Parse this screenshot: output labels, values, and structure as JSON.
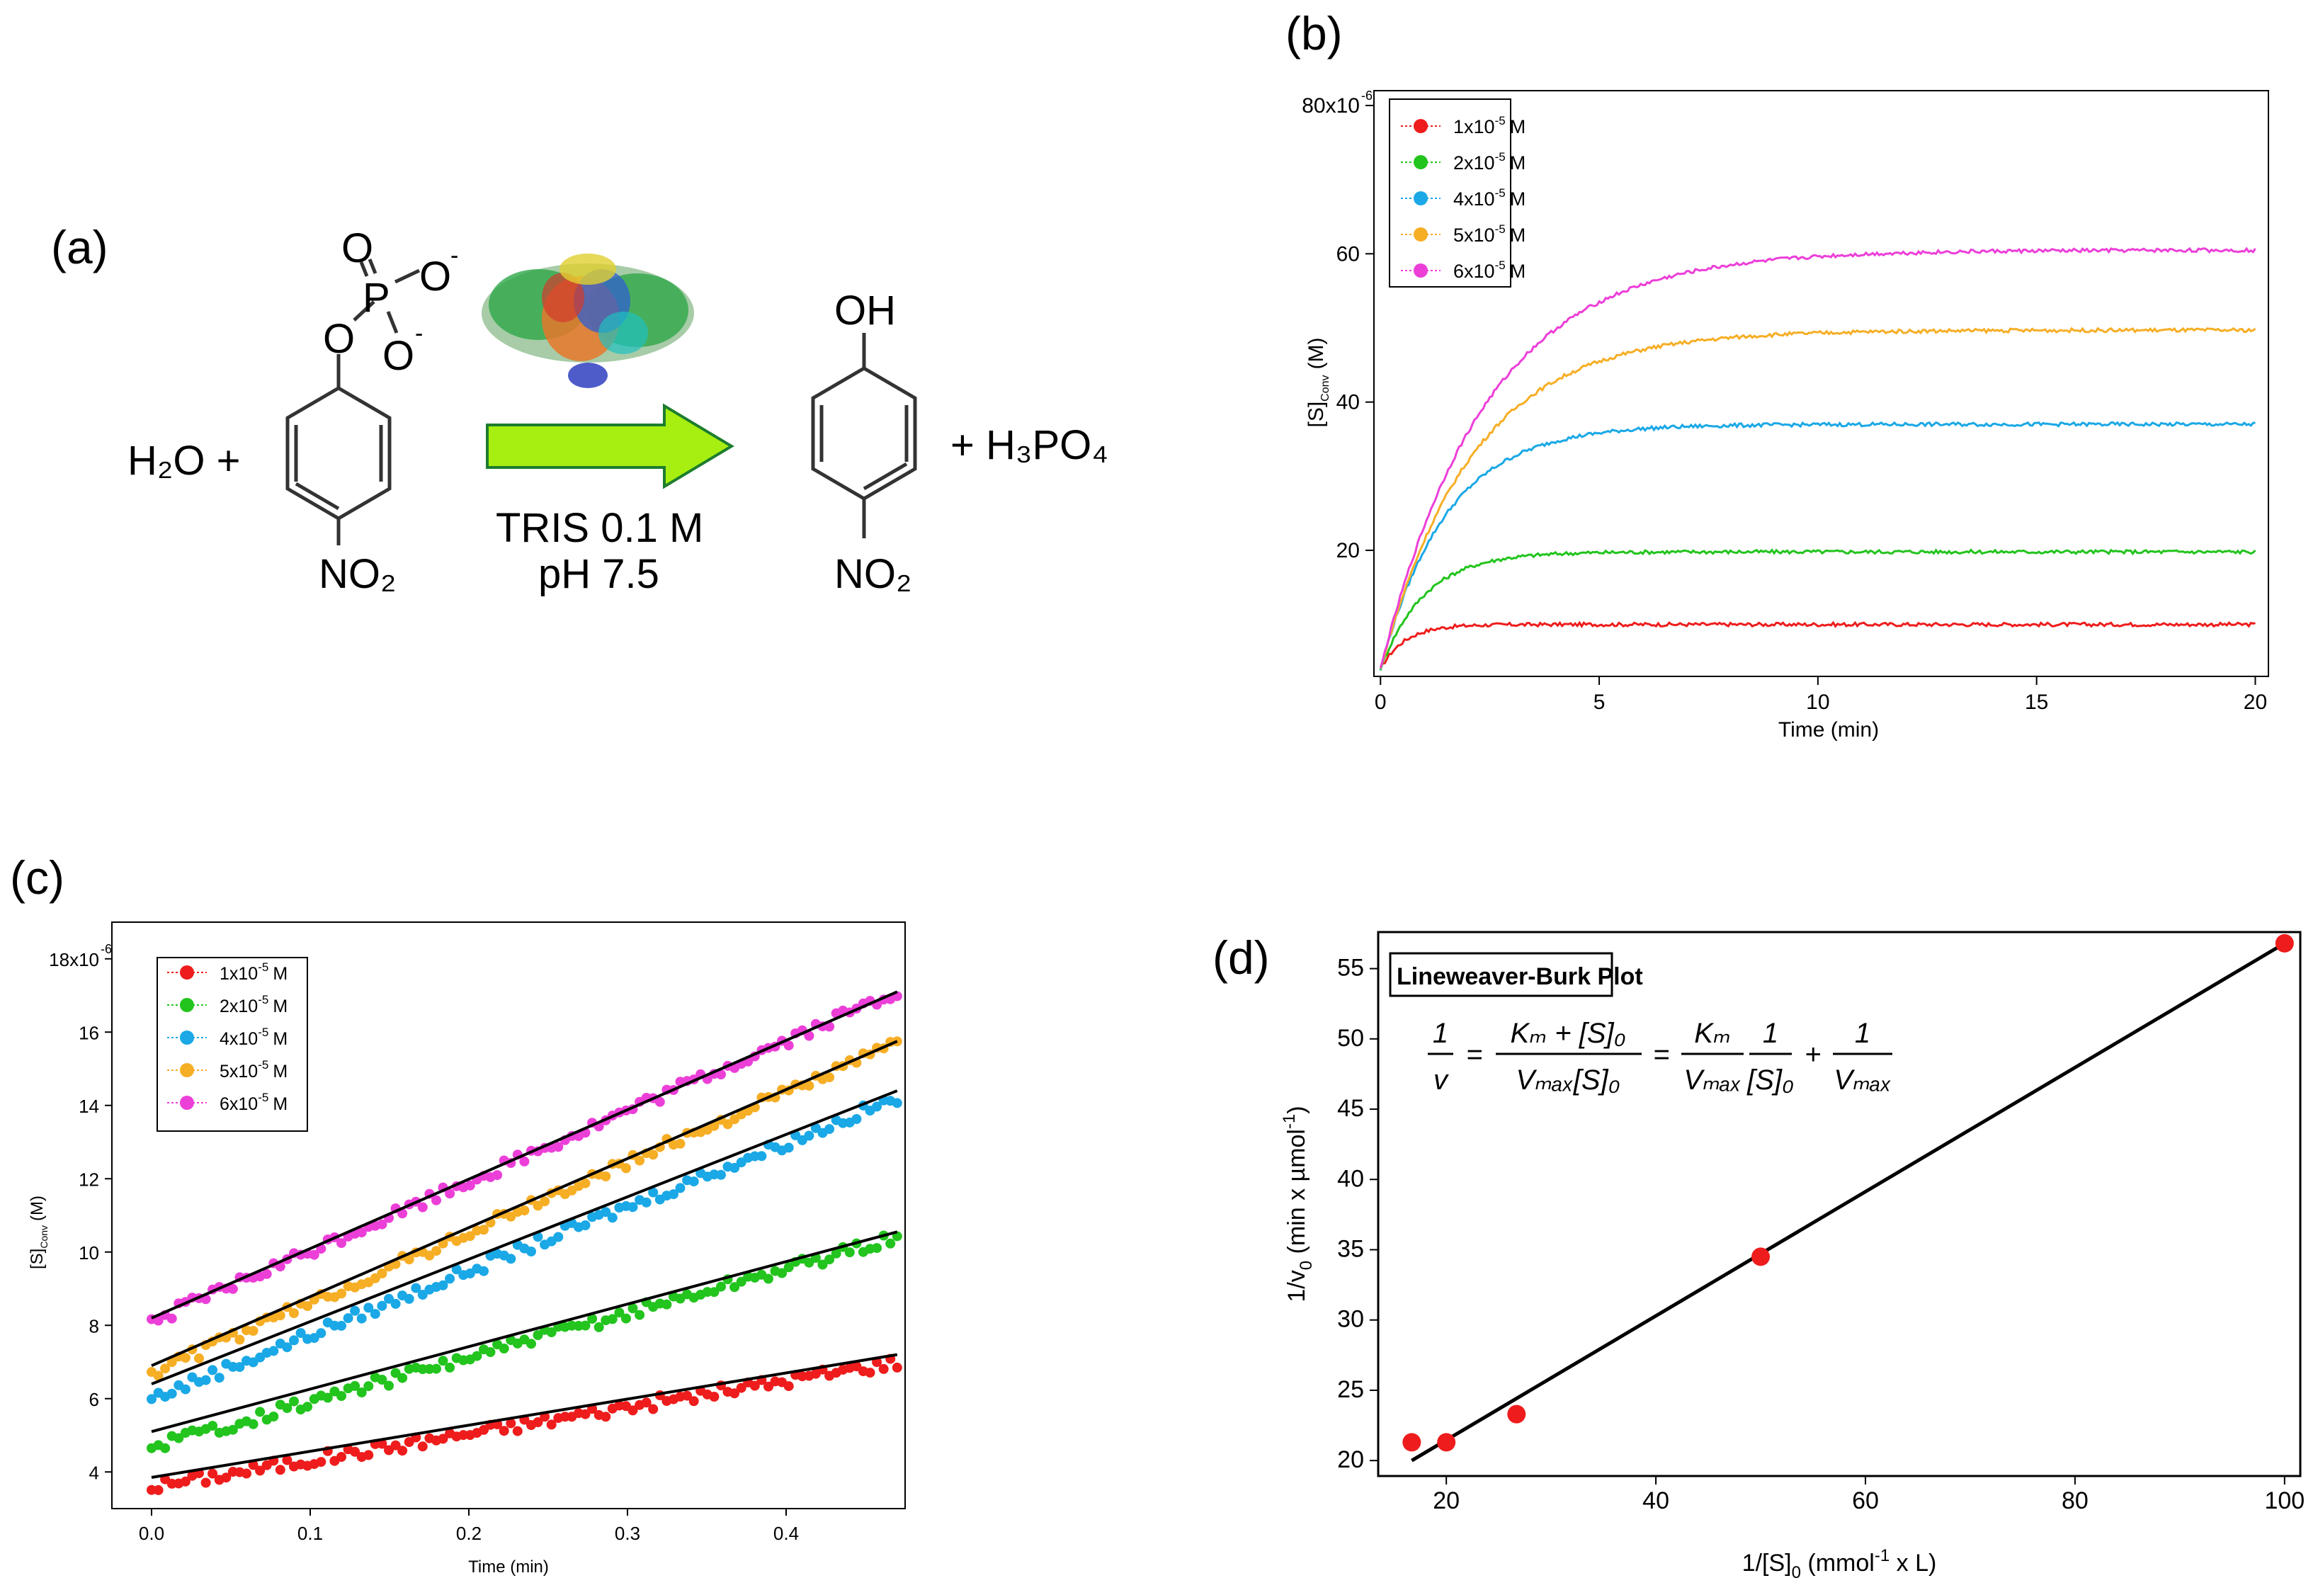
{
  "panels": {
    "a": {
      "label": "(a)",
      "reactant_water": "H₂O +",
      "substrate": {
        "o_double": "O",
        "o_minus_1": "O",
        "o_minus_2": "O",
        "p": "P",
        "o_link": "O",
        "charge": "-",
        "no2": "NO₂"
      },
      "conditions_line1": "TRIS 0.1 M",
      "conditions_line2": "pH 7.5",
      "product_oh": "OH",
      "product_no2": "NO₂",
      "byproduct": "+ H₃PO₄"
    },
    "b": {
      "label": "(b)"
    },
    "c": {
      "label": "(c)"
    },
    "d": {
      "label": "(d)",
      "plot_title": "Lineweaver-Burk Plot",
      "equation": {
        "lhs_num": "1",
        "lhs_den": "v",
        "frac1_num": "Kₘ + [S]₀",
        "frac1_den": "Vₘₐₓ[S]₀",
        "frac2_num": "Kₘ",
        "frac2_den": "Vₘₐₓ",
        "frac3_num": "1",
        "frac3_den": "[S]₀",
        "frac4_num": "1",
        "frac4_den": "Vₘₐₓ",
        "eq": "=",
        "plus": "+"
      }
    }
  },
  "chart_data": [
    {
      "id": "b",
      "type": "line",
      "xlabel": "Time (min)",
      "ylabel": "[S]Conv (M)",
      "ylabel_main": "[S]",
      "ylabel_sub": "Conv",
      "ylabel_unit": "(M)",
      "xlim": [
        -0.15,
        20.3
      ],
      "ylim": [
        3,
        82
      ],
      "xticks": [
        0,
        5,
        10,
        15,
        20
      ],
      "yticks": [
        20,
        40,
        60,
        80
      ],
      "ytick_labels": [
        "20",
        "40",
        "60",
        "80x10"
      ],
      "ytick_exponent": "-6",
      "legend_exponent": "-5",
      "legend_unit": "M",
      "series": [
        {
          "name": "1x10-5 M",
          "label_base": "1x10",
          "color": "#ee1c1c",
          "plateau": 10,
          "start": 4,
          "tau": 0.55
        },
        {
          "name": "2x10-5 M",
          "label_base": "2x10",
          "color": "#22c41d",
          "plateau": 19.8,
          "start": 4,
          "tau": 1.0
        },
        {
          "name": "4x10-5 M",
          "label_base": "4x10",
          "color": "#1aa8e6",
          "plateau": 37,
          "start": 4,
          "tau": 1.5
        },
        {
          "name": "5x10-5 M",
          "label_base": "5x10",
          "color": "#f6ae25",
          "plateau": 49.7,
          "start": 4,
          "tau": 2.1
        },
        {
          "name": "6x10-5 M",
          "label_base": "6x10",
          "color": "#ec3fd8",
          "plateau": 60.5,
          "start": 4,
          "tau": 2.4
        }
      ]
    },
    {
      "id": "c",
      "type": "scatter",
      "xlabel": "Time (min)",
      "ylabel": "[S]Conv (M)",
      "ylabel_main": "[S]",
      "ylabel_sub": "Conv",
      "ylabel_unit": "(M)",
      "xlim": [
        -0.025,
        0.475
      ],
      "ylim": [
        3.0,
        19.0
      ],
      "xticks": [
        0.0,
        0.1,
        0.2,
        0.3,
        0.4
      ],
      "xtick_labels": [
        "0.0",
        "0.1",
        "0.2",
        "0.3",
        "0.4"
      ],
      "yticks": [
        4,
        6,
        8,
        10,
        12,
        14,
        16,
        18
      ],
      "ytick_labels": [
        "4",
        "6",
        "8",
        "10",
        "12",
        "14",
        "16",
        "18x10"
      ],
      "ytick_exponent": "-6",
      "legend_exponent": "-5",
      "legend_unit": "M",
      "series": [
        {
          "name": "1x10-5 M",
          "label_base": "1x10",
          "color": "#ee1c1c",
          "y_start": 3.6,
          "y_end": 7.0,
          "fit": [
            3.85,
            7.2
          ]
        },
        {
          "name": "2x10-5 M",
          "label_base": "2x10",
          "color": "#22c41d",
          "y_start": 4.7,
          "y_end": 10.4,
          "fit": [
            5.1,
            10.55
          ]
        },
        {
          "name": "4x10-5 M",
          "label_base": "4x10",
          "color": "#1aa8e6",
          "y_start": 6.0,
          "y_end": 14.2,
          "fit": [
            6.4,
            14.4
          ]
        },
        {
          "name": "5x10-5 M",
          "label_base": "5x10",
          "color": "#f6ae25",
          "y_start": 6.7,
          "y_end": 15.7,
          "fit": [
            6.9,
            15.75
          ]
        },
        {
          "name": "6x10-5 M",
          "label_base": "6x10",
          "color": "#ec3fd8",
          "y_start": 8.1,
          "y_end": 17.1,
          "fit": [
            8.2,
            17.1
          ]
        }
      ],
      "fit_color": "#000000"
    },
    {
      "id": "d",
      "type": "scatter",
      "title": "Lineweaver-Burk Plot",
      "xlabel": "1/[S]0 (mmol-1 x L)",
      "xlabel_parts": {
        "a": "1/[S]",
        "b": "0",
        "c": " (mmol",
        "d": "-1",
        "e": " x L)"
      },
      "ylabel": "1/v0 (min x µmol-1)",
      "ylabel_parts": {
        "a": "1/v",
        "b": "0",
        "c": " (min x µmol",
        "d": "-1",
        "e": ")"
      },
      "xlim": [
        13.5,
        101.5
      ],
      "ylim": [
        18.9,
        57.6
      ],
      "xticks": [
        20,
        40,
        60,
        80,
        100
      ],
      "yticks": [
        20,
        25,
        30,
        35,
        40,
        45,
        50,
        55
      ],
      "points": [
        {
          "x": 16.7,
          "y": 21.3
        },
        {
          "x": 20,
          "y": 21.3
        },
        {
          "x": 26.7,
          "y": 23.3
        },
        {
          "x": 50,
          "y": 34.5
        },
        {
          "x": 100,
          "y": 56.8
        }
      ],
      "fit": {
        "x": [
          16.7,
          100
        ],
        "y": [
          20.0,
          56.8
        ]
      },
      "point_color": "#ee1c1c"
    }
  ]
}
